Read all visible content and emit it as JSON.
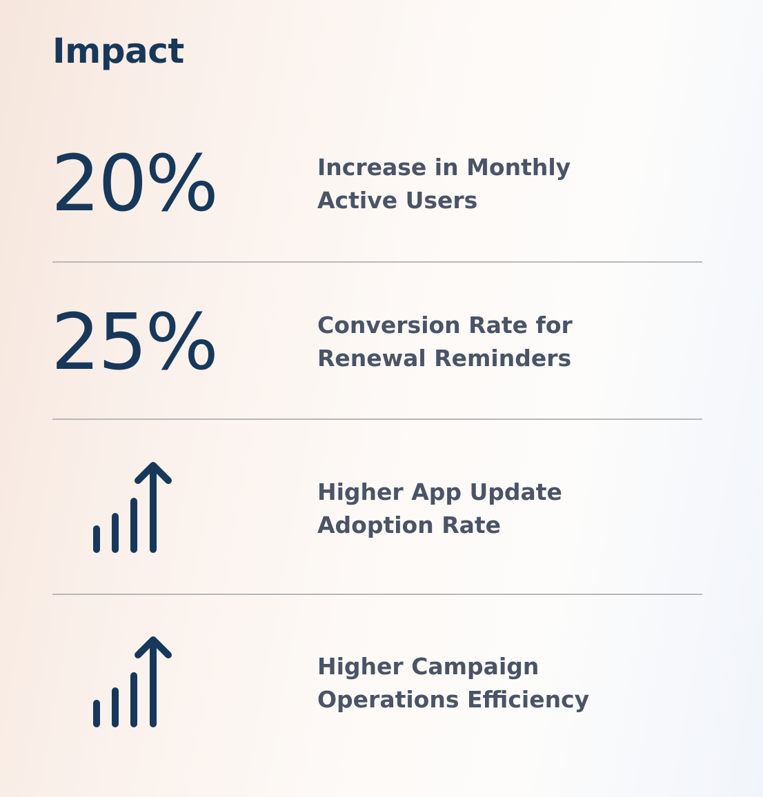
{
  "title": "Impact",
  "colors": {
    "primary": "#17385a",
    "text": "#4b5466",
    "divider": "#b8b8b8"
  },
  "items": [
    {
      "metric": "20%",
      "icon": null,
      "description": "Increase in Monthly\nActive Users"
    },
    {
      "metric": "25%",
      "icon": null,
      "description": "Conversion Rate for\nRenewal Reminders"
    },
    {
      "metric": null,
      "icon": "signal-growth-arrow-icon",
      "description": "Higher App Update\nAdoption Rate"
    },
    {
      "metric": null,
      "icon": "signal-growth-arrow-icon",
      "description": "Higher Campaign\nOperations Efficiency"
    }
  ]
}
